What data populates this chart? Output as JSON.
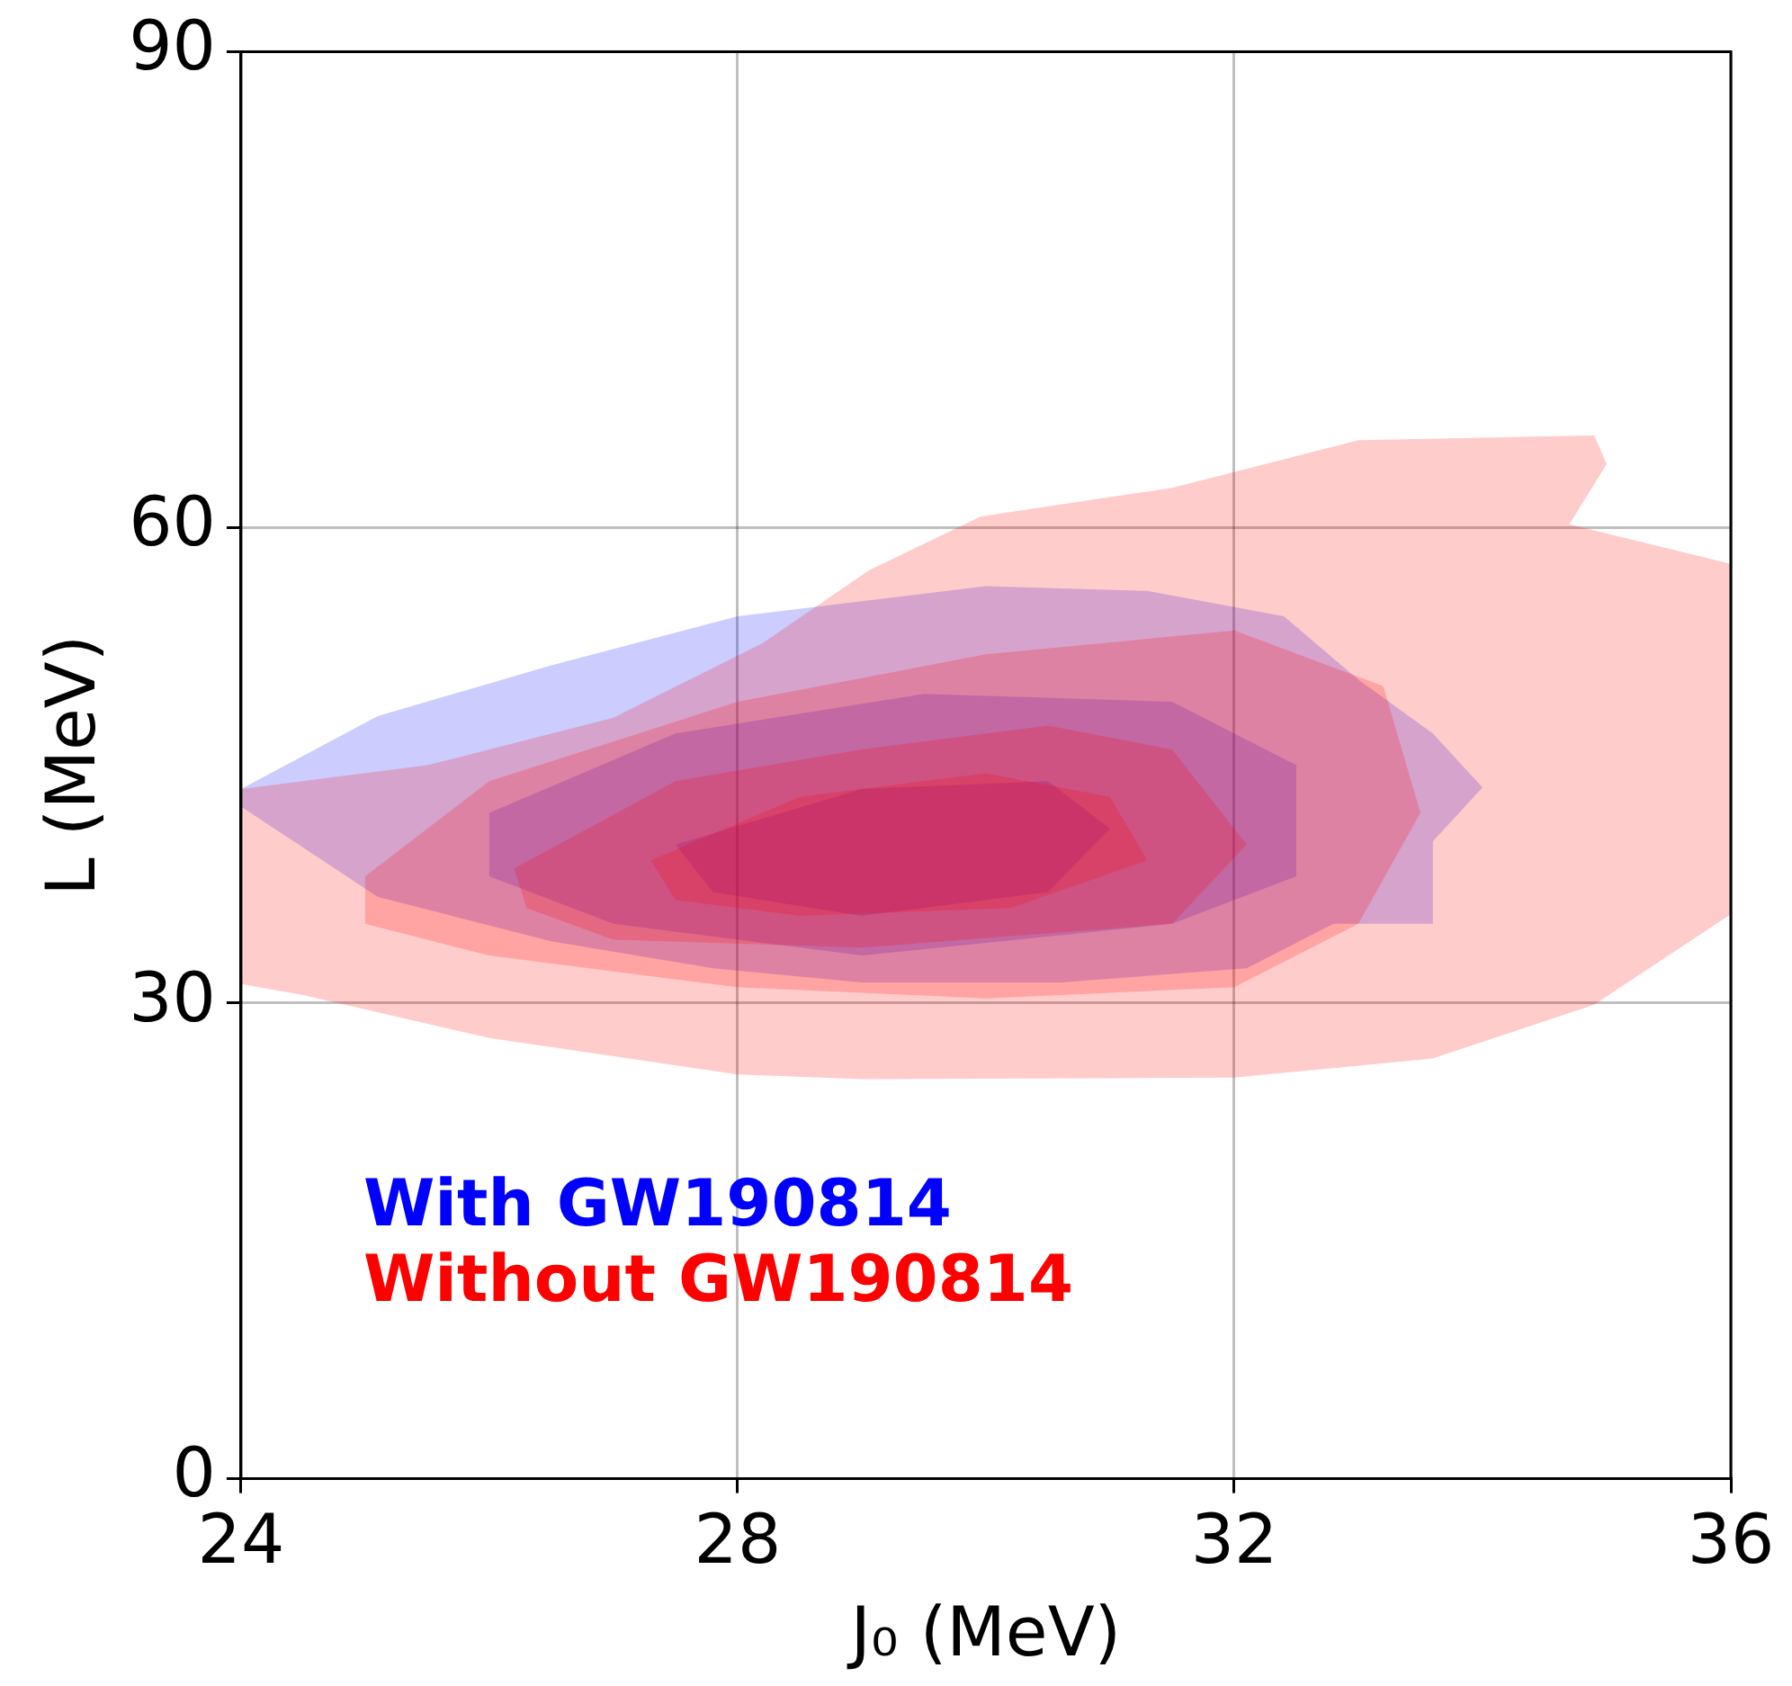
{
  "chart_data": {
    "type": "area",
    "xlabel": "J₀ (MeV)",
    "ylabel": "L (MeV)",
    "xlim": [
      24,
      36
    ],
    "ylim": [
      0,
      90
    ],
    "xticks": [
      24,
      28,
      32,
      36
    ],
    "yticks": [
      0,
      30,
      60,
      90
    ],
    "grid": true,
    "legend": "bottom left",
    "series": [
      {
        "name": "Without GW190814",
        "color": "#ff0000",
        "x": [
          24,
          25.5,
          27,
          28.2,
          29.06,
          29.96,
          31.5,
          33,
          34.9,
          35,
          34.7,
          36,
          36,
          34.9,
          33.6,
          32,
          29,
          28,
          26,
          24.5,
          24
        ],
        "values": [
          43.5,
          45,
          48,
          52.7,
          57.3,
          60.7,
          62.5,
          65.5,
          65.8,
          64,
          60.2,
          57.7,
          35.6,
          29.9,
          26.5,
          25.3,
          25.2,
          25.5,
          27.8,
          30.5,
          31.2
        ]
      },
      {
        "color": "#ff0000",
        "x": [
          25,
          26,
          28,
          30,
          32,
          33.2,
          33.5,
          33,
          32,
          30,
          28,
          26,
          25
        ],
        "values": [
          38,
          44,
          49,
          52,
          53.5,
          50,
          42,
          35,
          31,
          30.3,
          31,
          33,
          35
        ]
      },
      {
        "color": "#ff0000",
        "x": [
          26.2,
          27.5,
          29,
          30.5,
          31.5,
          32.1,
          31.5,
          29,
          27,
          26.3
        ],
        "values": [
          38.5,
          44,
          46,
          47.5,
          46,
          40,
          35,
          33.5,
          34,
          36
        ]
      },
      {
        "color": "#ff0000",
        "x": [
          27.3,
          28.5,
          30,
          31,
          31.3,
          30.2,
          28.5,
          27.5
        ],
        "values": [
          39,
          43,
          44.5,
          43,
          39,
          36,
          35.5,
          36.5
        ]
      },
      {
        "name": "With GW190814",
        "color": "#0000ff",
        "x": [
          24,
          25.1,
          26.5,
          28,
          30,
          31.3,
          32.4,
          33,
          33.6,
          34,
          33.6,
          33.6,
          32.8,
          32.1,
          30.6,
          29,
          27.8,
          26.5,
          25.1,
          24
        ],
        "values": [
          43.5,
          48.1,
          51.3,
          54.4,
          56.3,
          56,
          54.4,
          50.4,
          47,
          43.6,
          40.2,
          35,
          35,
          32.2,
          31.3,
          31.3,
          32.2,
          33.9,
          36.7,
          42.4
        ]
      },
      {
        "color": "#0000ff",
        "x": [
          26,
          27.5,
          29.5,
          31.5,
          32.5,
          32.5,
          31.5,
          29,
          27,
          26
        ],
        "values": [
          42,
          47,
          49.5,
          49,
          45,
          38,
          35,
          33,
          35,
          38
        ]
      },
      {
        "color": "#0000ff",
        "x": [
          27.5,
          29,
          30.5,
          31,
          30.5,
          29,
          27.8
        ],
        "values": [
          40,
          43.5,
          44,
          41,
          37,
          35.5,
          37
        ]
      }
    ]
  }
}
